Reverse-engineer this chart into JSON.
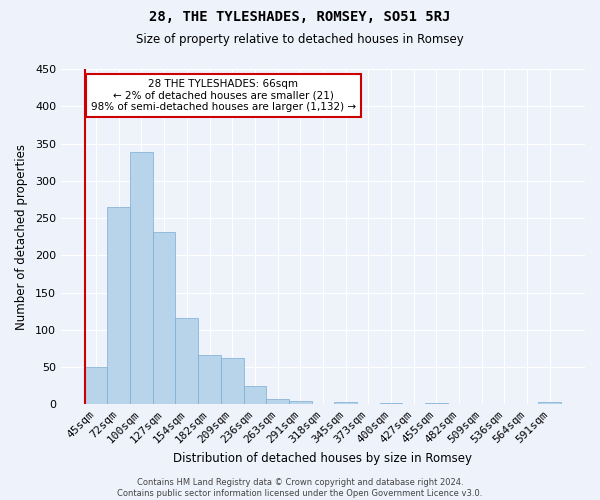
{
  "title": "28, THE TYLESHADES, ROMSEY, SO51 5RJ",
  "subtitle": "Size of property relative to detached houses in Romsey",
  "xlabel": "Distribution of detached houses by size in Romsey",
  "ylabel": "Number of detached properties",
  "bar_labels": [
    "45sqm",
    "72sqm",
    "100sqm",
    "127sqm",
    "154sqm",
    "182sqm",
    "209sqm",
    "236sqm",
    "263sqm",
    "291sqm",
    "318sqm",
    "345sqm",
    "373sqm",
    "400sqm",
    "427sqm",
    "455sqm",
    "482sqm",
    "509sqm",
    "536sqm",
    "564sqm",
    "591sqm"
  ],
  "bar_values": [
    50,
    265,
    338,
    232,
    116,
    66,
    62,
    25,
    8,
    5,
    0,
    3,
    0,
    2,
    0,
    2,
    0,
    0,
    0,
    0,
    3
  ],
  "bar_color": "#b8d4ea",
  "bar_edge_color": "#7aadd4",
  "highlight_color": "#cc0000",
  "annotation_title": "28 THE TYLESHADES: 66sqm",
  "annotation_line1": "← 2% of detached houses are smaller (21)",
  "annotation_line2": "98% of semi-detached houses are larger (1,132) →",
  "annotation_box_color": "#ffffff",
  "annotation_box_edge": "#cc0000",
  "footer_line1": "Contains HM Land Registry data © Crown copyright and database right 2024.",
  "footer_line2": "Contains public sector information licensed under the Open Government Licence v3.0.",
  "ylim": [
    0,
    450
  ],
  "yticks": [
    0,
    50,
    100,
    150,
    200,
    250,
    300,
    350,
    400,
    450
  ],
  "background_color": "#eef2fb",
  "grid_color": "#ffffff"
}
